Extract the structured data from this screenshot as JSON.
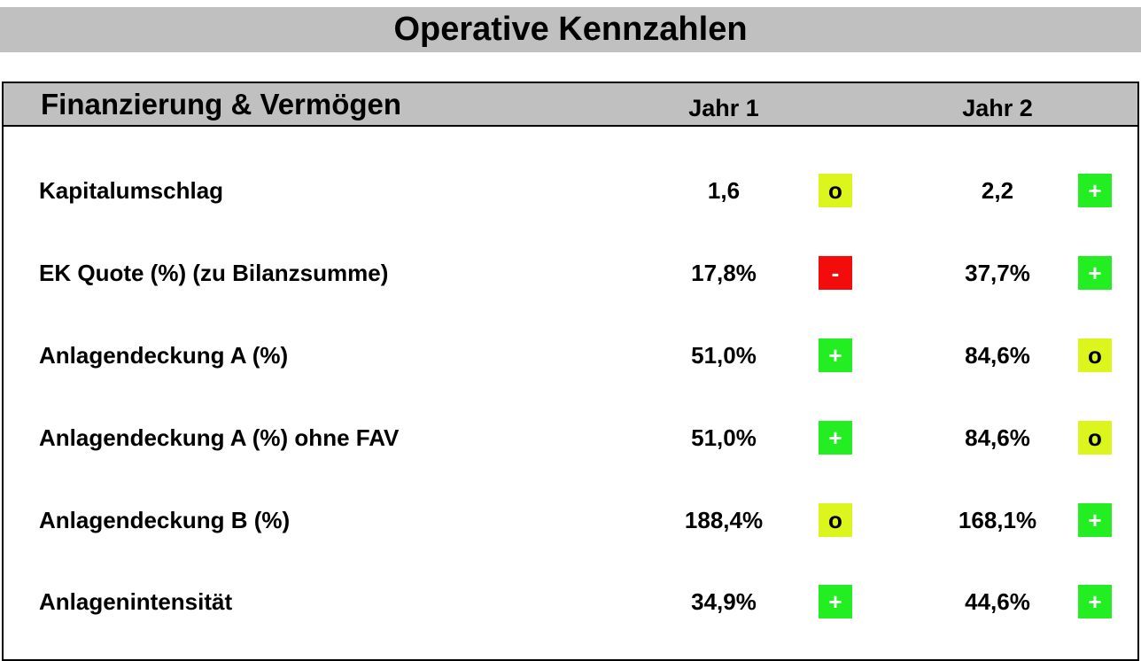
{
  "title": "Operative Kennzahlen",
  "section": {
    "title": "Finanzierung & Vermögen",
    "columns": [
      "Jahr 1",
      "Jahr 2"
    ]
  },
  "rows": [
    {
      "label": "Kapitalumschlag",
      "y1": {
        "value": "1,6",
        "rating": "o"
      },
      "y2": {
        "value": "2,2",
        "rating": "+"
      }
    },
    {
      "label": "EK Quote (%) (zu Bilanzsumme)",
      "y1": {
        "value": "17,8%",
        "rating": "-"
      },
      "y2": {
        "value": "37,7%",
        "rating": "+"
      }
    },
    {
      "label": "Anlagendeckung A (%)",
      "y1": {
        "value": "51,0%",
        "rating": "+"
      },
      "y2": {
        "value": "84,6%",
        "rating": "o"
      }
    },
    {
      "label": "Anlagendeckung A (%) ohne FAV",
      "y1": {
        "value": "51,0%",
        "rating": "+"
      },
      "y2": {
        "value": "84,6%",
        "rating": "o"
      }
    },
    {
      "label": "Anlagendeckung B (%)",
      "y1": {
        "value": "188,4%",
        "rating": "o"
      },
      "y2": {
        "value": "168,1%",
        "rating": "+"
      }
    },
    {
      "label": "Anlagenintensität",
      "y1": {
        "value": "34,9%",
        "rating": "+"
      },
      "y2": {
        "value": "44,6%",
        "rating": "+"
      }
    }
  ],
  "colors": {
    "header_bg": "#c0c0c0",
    "rating_good": "#22ee22",
    "rating_neutral": "#dcf51c",
    "rating_bad": "#f20c0c"
  }
}
